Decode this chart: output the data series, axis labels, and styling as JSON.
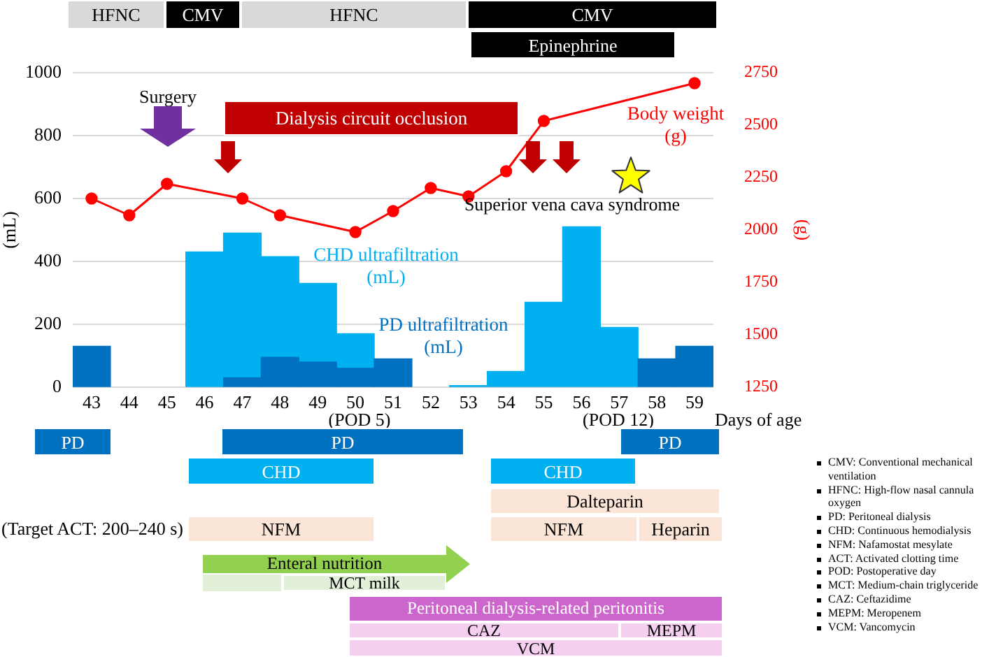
{
  "chart_data": {
    "type": "bar",
    "stacked": true,
    "x": [
      43,
      44,
      45,
      46,
      47,
      48,
      49,
      50,
      51,
      52,
      53,
      54,
      55,
      56,
      57,
      58,
      59
    ],
    "xlim": [
      42.5,
      59.5
    ],
    "xticks": [
      43,
      44,
      45,
      46,
      47,
      48,
      49,
      50,
      51,
      52,
      53,
      54,
      55,
      56,
      57,
      58,
      59
    ],
    "xlabel": "Days of age",
    "ylabel": "(mL)",
    "y2label": "(g)",
    "ylim": [
      0,
      1000
    ],
    "yticks": [
      0,
      200,
      400,
      600,
      800,
      1000
    ],
    "y2lim": [
      1250,
      2750
    ],
    "y2ticks": [
      1250,
      1500,
      1750,
      2000,
      2250,
      2500,
      2750
    ],
    "grid": "y",
    "marker": "circle",
    "series": [
      {
        "name": "PD ultrafiltration (mL)",
        "color": "#0070c0",
        "values": [
          130,
          null,
          null,
          null,
          30,
          95,
          80,
          60,
          90,
          null,
          null,
          null,
          null,
          null,
          null,
          90,
          130
        ]
      },
      {
        "name": "CHD ultrafiltration (mL)",
        "color": "#00b0f0",
        "values": [
          null,
          null,
          null,
          430,
          460,
          320,
          250,
          110,
          null,
          null,
          5,
          50,
          270,
          510,
          190,
          null,
          null
        ]
      },
      {
        "name": "Body weight (g)",
        "type": "line",
        "axis": "y2",
        "color": "#ff0000",
        "x": [
          43,
          44,
          45,
          47,
          48,
          50,
          51,
          52,
          53,
          54,
          55,
          59
        ],
        "values": [
          2150,
          2070,
          2220,
          2150,
          2070,
          1990,
          2090,
          2200,
          2160,
          2280,
          2520,
          2700
        ]
      }
    ],
    "annotations": [
      "Surgery",
      "Dialysis circuit occlusion",
      "Superior vena cava syndrome",
      "(POD 5)",
      "(POD 12)",
      "(Target ACT: 200–240 s)",
      "HFNC",
      "CMV",
      "HFNC",
      "CMV",
      "Epinephrine",
      "PD",
      "PD",
      "PD",
      "CHD",
      "CHD",
      "Dalteparin",
      "NFM",
      "NFM",
      "Heparin",
      "Enteral nutrition",
      "MCT milk",
      "Peritoneal dialysis-related peritonitis",
      "CAZ",
      "MEPM",
      "VCM",
      "CMV: Conventional mechanical ventilation",
      "HFNC: High-flow nasal cannula oxygen",
      "PD: Peritoneal dialysis",
      "CHD: Continuous hemodialysis",
      "NFM: Nafamostat mesylate",
      "ACT: Activated clotting time",
      "POD: Postoperative day",
      "MCT: Medium-chain triglyceride",
      "CAZ: Ceftazidime",
      "MEPM: Meropenem",
      "VCM: Vancomycin"
    ]
  }
}
